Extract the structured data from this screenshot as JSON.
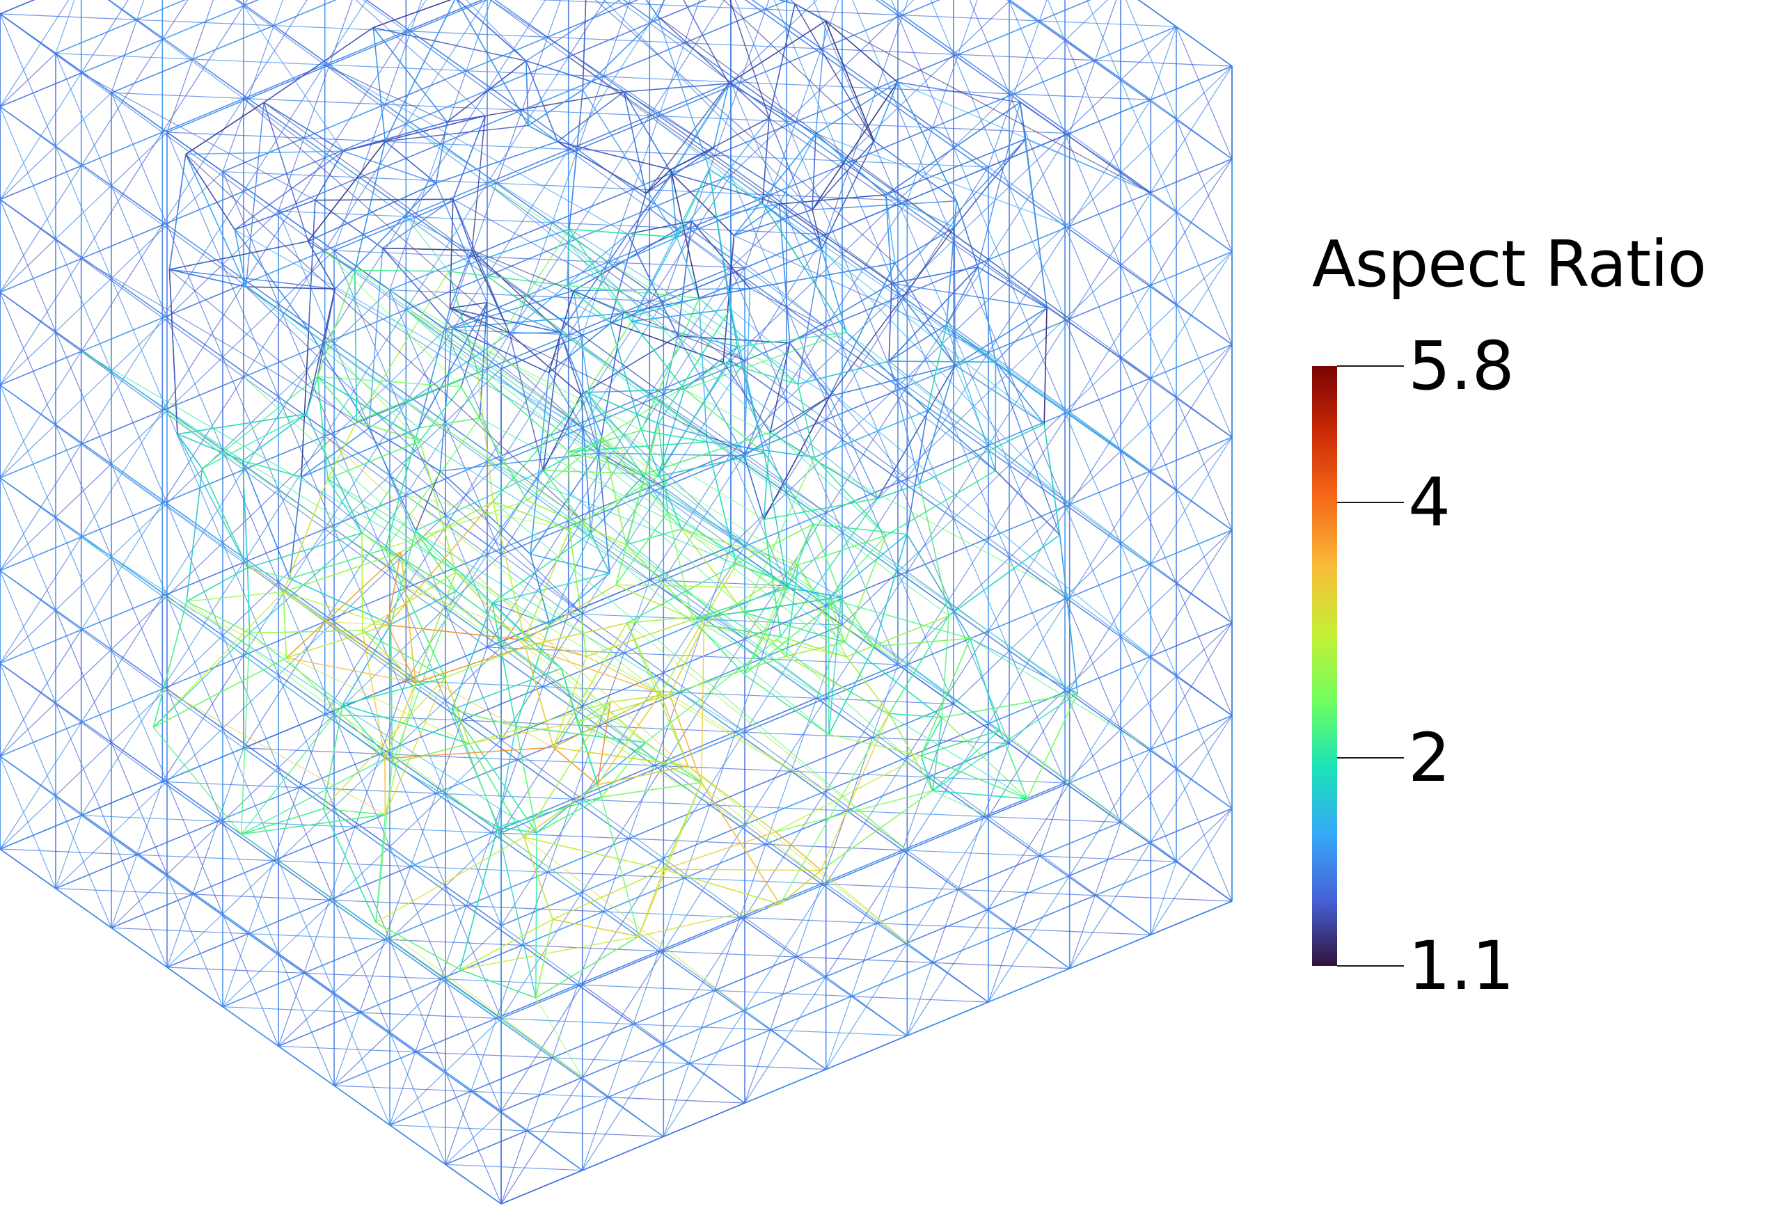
{
  "legend": {
    "title": "Aspect Ratio",
    "ticks": [
      {
        "value": 5.8,
        "label": "5.8"
      },
      {
        "value": 4,
        "label": "4"
      },
      {
        "value": 2,
        "label": "2"
      },
      {
        "value": 1.1,
        "label": "1.1"
      }
    ],
    "range": [
      1.1,
      5.8
    ],
    "colormap": [
      "#30123b",
      "#4662d7",
      "#36aaf9",
      "#1ae4b6",
      "#72fe5e",
      "#c7ef34",
      "#faba39",
      "#f66b19",
      "#cb2a04",
      "#7a0403"
    ]
  },
  "mesh": {
    "type": "tetrahedral-wireframe-cube",
    "grid_divisions": 9,
    "colored_by": "Aspect Ratio"
  }
}
